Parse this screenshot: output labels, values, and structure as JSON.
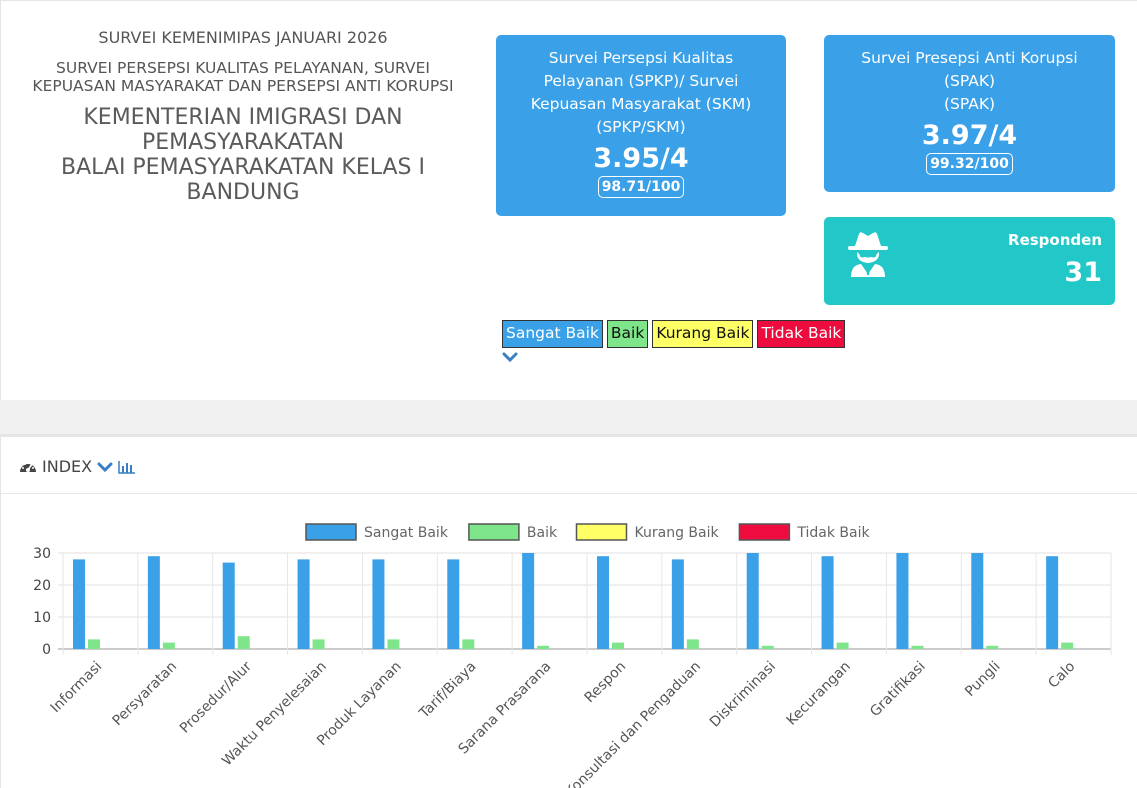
{
  "header": {
    "survey_title": "SURVEI KEMENIMIPAS JANUARI 2026",
    "survey_subtitle": "SURVEI PERSEPSI KUALITAS PELAYANAN, SURVEI KEPUASAN MASYARAKAT DAN PERSEPSI ANTI KORUPSI",
    "org_line1": "KEMENTERIAN IMIGRASI DAN PEMASYARAKATAN",
    "org_line2": "BALAI PEMASYARAKATAN KELAS I BANDUNG"
  },
  "cards": {
    "spkp": {
      "title": "Survei Persepsi Kualitas Pelayanan (SPKP)/ Survei Kepuasan Masyarakat (SKM) (SPKP/SKM)",
      "score": "3.95/4",
      "pct": "98.71/100"
    },
    "spak": {
      "title_line1": "Survei Presepsi Anti Korupsi (SPAK)",
      "title_line2": "(SPAK)",
      "score": "3.97/4",
      "pct": "99.32/100"
    },
    "responden": {
      "label": "Responden",
      "value": "31",
      "icon": "user-secret-icon"
    }
  },
  "legend_tags": [
    "Sangat Baik",
    "Baik",
    "Kurang Baik",
    "Tidak Baik"
  ],
  "index_section": {
    "title": "INDEX",
    "icons": [
      "dashboard-icon",
      "chevron-down-icon",
      "bar-chart-icon"
    ]
  },
  "colors": {
    "card_blue": "#3aa0e8",
    "card_teal": "#22c7c8",
    "sangat_baik": "#3aa0e8",
    "baik": "#7fe58a",
    "kurang_baik": "#ffff66",
    "tidak_baik": "#ee0b3e"
  },
  "chart_data": {
    "type": "bar",
    "categories": [
      "Informasi",
      "Persyaratan",
      "Prosedur/Alur",
      "Waktu Penyelesaian",
      "Produk Layanan",
      "Tarif/Biaya",
      "Sarana Prasarana",
      "Respon",
      "Konsultasi dan Pengaduan",
      "Diskriminasi",
      "Kecurangan",
      "Gratifikasi",
      "Pungli",
      "Calo"
    ],
    "series": [
      {
        "name": "Sangat Baik",
        "color": "#3aa0e8",
        "values": [
          28,
          29,
          27,
          28,
          28,
          28,
          30,
          29,
          28,
          30,
          29,
          30,
          30,
          29
        ]
      },
      {
        "name": "Baik",
        "color": "#7fe58a",
        "values": [
          3,
          2,
          4,
          3,
          3,
          3,
          1,
          2,
          3,
          1,
          2,
          1,
          1,
          2
        ]
      },
      {
        "name": "Kurang Baik",
        "color": "#ffff66",
        "values": [
          0,
          0,
          0,
          0,
          0,
          0,
          0,
          0,
          0,
          0,
          0,
          0,
          0,
          0
        ]
      },
      {
        "name": "Tidak Baik",
        "color": "#ee0b3e",
        "values": [
          0,
          0,
          0,
          0,
          0,
          0,
          0,
          0,
          0,
          0,
          0,
          0,
          0,
          0
        ]
      }
    ],
    "yticks": [
      "0",
      "10",
      "20",
      "30"
    ],
    "ylim": [
      0,
      30
    ],
    "legend_position": "top",
    "grid": true
  }
}
